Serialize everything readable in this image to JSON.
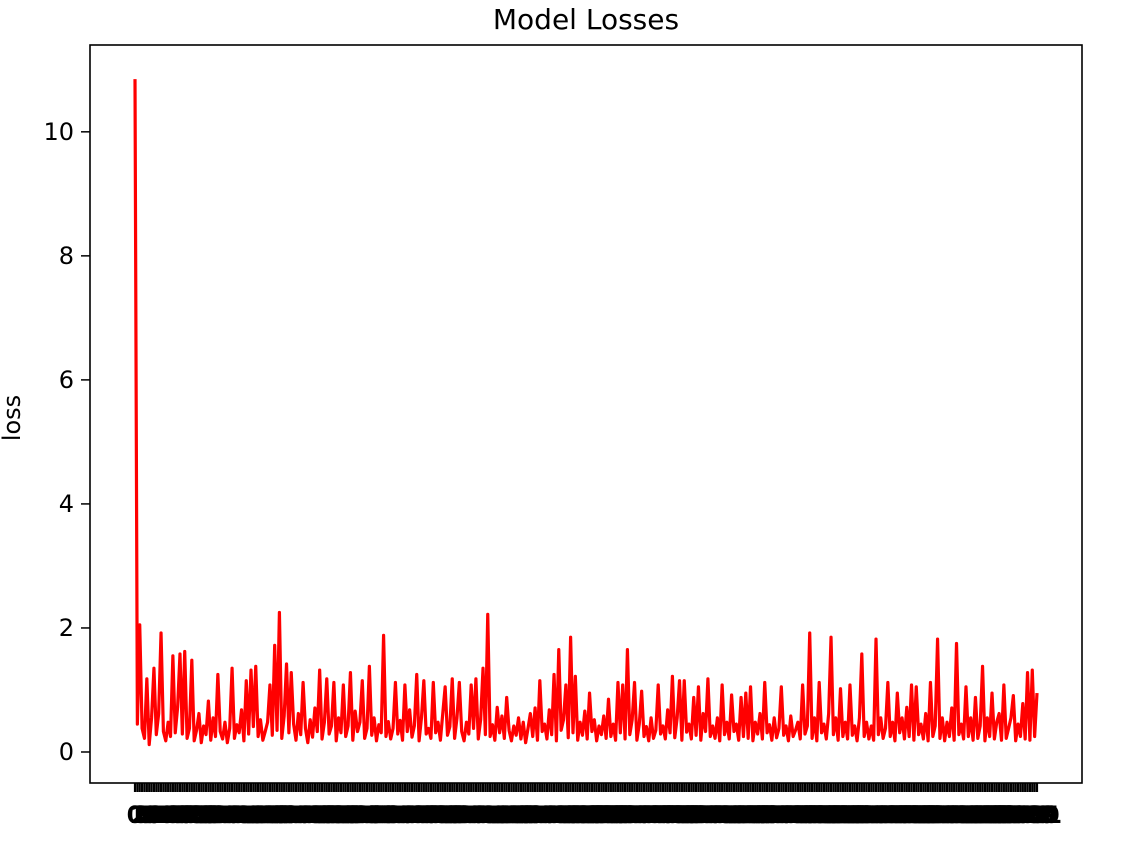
{
  "chart_data": {
    "type": "line",
    "title": "Model Losses",
    "xlabel": "",
    "ylabel": "loss",
    "ylim": [
      -0.5,
      11.4
    ],
    "y_ticks": [
      0,
      2,
      4,
      6,
      8,
      10
    ],
    "x_tick_labels_overlapping": true,
    "grid": false,
    "series": [
      {
        "color": "#ff0000",
        "values": [
          10.85,
          0.45,
          2.05,
          0.38,
          0.22,
          1.18,
          0.12,
          0.55,
          1.35,
          0.28,
          0.62,
          1.92,
          0.33,
          0.18,
          0.48,
          0.25,
          1.55,
          0.31,
          0.72,
          1.58,
          0.29,
          1.62,
          0.22,
          0.38,
          1.48,
          0.18,
          0.35,
          0.62,
          0.15,
          0.42,
          0.28,
          0.82,
          0.19,
          0.55,
          0.25,
          1.25,
          0.33,
          0.21,
          0.48,
          0.15,
          0.38,
          1.35,
          0.22,
          0.44,
          0.31,
          0.68,
          0.18,
          1.15,
          0.29,
          1.32,
          0.41,
          1.38,
          0.25,
          0.52,
          0.19,
          0.33,
          0.48,
          1.08,
          0.27,
          1.72,
          0.35,
          2.25,
          0.22,
          0.58,
          1.42,
          0.31,
          1.28,
          0.45,
          0.19,
          0.62,
          0.28,
          1.12,
          0.38,
          0.15,
          0.52,
          0.24,
          0.71,
          0.33,
          1.32,
          0.21,
          0.48,
          1.18,
          0.29,
          0.42,
          1.12,
          0.18,
          0.55,
          0.31,
          1.08,
          0.25,
          0.42,
          1.28,
          0.19,
          0.66,
          0.33,
          0.48,
          1.15,
          0.22,
          0.38,
          1.38,
          0.27,
          0.55,
          0.18,
          0.44,
          0.31,
          1.88,
          0.25,
          0.49,
          0.21,
          0.38,
          1.12,
          0.29,
          0.51,
          0.19,
          1.08,
          0.33,
          0.68,
          0.24,
          0.42,
          1.25,
          0.18,
          0.55,
          1.15,
          0.29,
          0.38,
          0.22,
          1.12,
          0.31,
          0.48,
          0.19,
          0.62,
          1.05,
          0.27,
          0.41,
          1.18,
          0.22,
          0.55,
          1.12,
          0.33,
          0.18,
          0.48,
          0.29,
          1.08,
          0.38,
          1.18,
          0.21,
          0.52,
          1.35,
          0.28,
          2.22,
          0.25,
          0.44,
          0.19,
          0.72,
          0.31,
          0.58,
          0.22,
          0.88,
          0.35,
          0.18,
          0.42,
          0.27,
          0.55,
          0.21,
          0.48,
          0.15,
          0.38,
          0.62,
          0.25,
          0.71,
          0.19,
          1.15,
          0.33,
          0.45,
          0.21,
          0.68,
          0.28,
          1.25,
          0.18,
          1.65,
          0.35,
          0.52,
          1.08,
          0.23,
          1.85,
          0.31,
          1.22,
          0.19,
          0.48,
          0.27,
          0.66,
          0.21,
          0.95,
          0.33,
          0.52,
          0.18,
          0.42,
          0.28,
          0.58,
          0.22,
          0.85,
          0.25,
          0.45,
          0.19,
          1.12,
          0.31,
          1.08,
          0.21,
          1.65,
          0.28,
          0.52,
          1.12,
          0.19,
          0.45,
          0.98,
          0.25,
          0.41,
          0.18,
          0.55,
          0.22,
          0.35,
          1.08,
          0.29,
          0.42,
          0.21,
          0.68,
          0.31,
          1.22,
          0.23,
          0.55,
          1.15,
          0.19,
          1.15,
          0.32,
          0.45,
          0.21,
          0.88,
          0.27,
          1.05,
          0.19,
          0.62,
          0.33,
          1.18,
          0.25,
          0.42,
          0.22,
          0.55,
          0.18,
          1.08,
          0.28,
          0.48,
          0.21,
          0.92,
          0.33,
          0.45,
          0.19,
          0.88,
          0.25,
          0.95,
          0.22,
          1.05,
          0.18,
          0.48,
          0.29,
          0.62,
          0.21,
          1.12,
          0.31,
          0.44,
          0.19,
          0.55,
          0.23,
          0.38,
          1.05,
          0.27,
          0.42,
          0.18,
          0.58,
          0.25,
          0.35,
          0.48,
          0.21,
          1.08,
          0.29,
          0.42,
          1.92,
          0.22,
          0.55,
          0.18,
          1.12,
          0.31,
          0.45,
          0.21,
          0.62,
          1.85,
          0.28,
          0.55,
          0.19,
          1.02,
          0.25,
          0.48,
          0.21,
          1.08,
          0.27,
          0.42,
          0.18,
          0.55,
          1.58,
          0.25,
          0.48,
          0.21,
          0.42,
          0.19,
          1.82,
          0.28,
          0.55,
          0.22,
          0.38,
          1.12,
          0.25,
          0.48,
          0.18,
          0.95,
          0.31,
          0.55,
          0.21,
          0.72,
          0.25,
          1.08,
          0.19,
          1.05,
          0.28,
          0.45,
          0.21,
          0.62,
          0.18,
          1.12,
          0.25,
          0.42,
          1.82,
          0.22,
          0.55,
          0.18,
          0.48,
          0.25,
          0.71,
          0.19,
          1.75,
          0.28,
          0.45,
          0.21,
          1.05,
          0.25,
          0.55,
          0.19,
          0.88,
          0.22,
          0.42,
          1.38,
          0.18,
          0.55,
          0.25,
          0.95,
          0.21,
          0.48,
          0.62,
          0.19,
          1.08,
          0.22,
          0.38,
          0.55,
          0.91,
          0.18,
          0.45,
          0.25,
          0.78,
          0.21,
          1.28,
          0.19,
          1.32,
          0.25,
          0.95
        ]
      }
    ]
  }
}
